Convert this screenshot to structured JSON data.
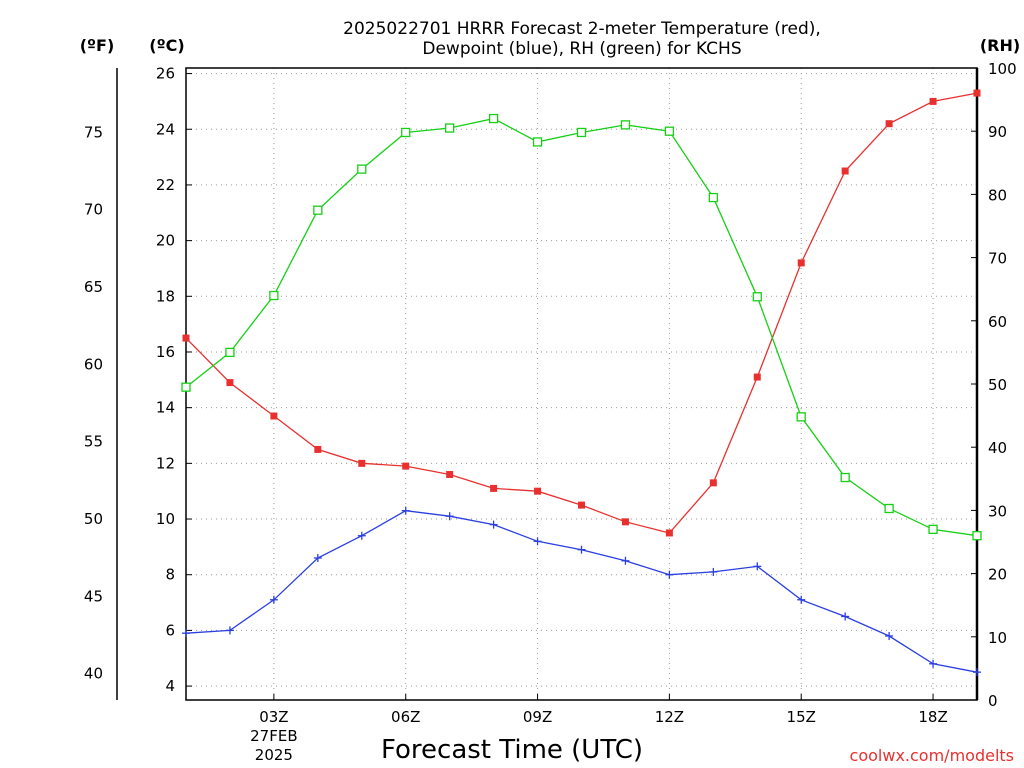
{
  "chart_data": {
    "type": "line",
    "title_line1": "2025022701 HRRR Forecast 2-meter Temperature (red),",
    "title_line2": "Dewpoint (blue), RH (green) for KCHS",
    "xlabel": "Forecast Time (UTC)",
    "credit": "coolwx.com/modelts",
    "unit_f": "(ºF)",
    "unit_c": "(ºC)",
    "unit_rh": "(RH)",
    "x_hours": [
      1,
      2,
      3,
      4,
      5,
      6,
      7,
      8,
      9,
      10,
      11,
      12,
      13,
      14,
      15,
      16,
      17,
      18,
      19
    ],
    "x_range": [
      1,
      19
    ],
    "x_ticks": [
      {
        "hour": 3,
        "label": "03Z",
        "sub1": "27FEB",
        "sub2": "2025"
      },
      {
        "hour": 6,
        "label": "06Z"
      },
      {
        "hour": 9,
        "label": "09Z"
      },
      {
        "hour": 12,
        "label": "12Z"
      },
      {
        "hour": 15,
        "label": "15Z"
      },
      {
        "hour": 18,
        "label": "18Z"
      }
    ],
    "y_celsius": {
      "range": [
        3.5,
        26.2
      ],
      "ticks": [
        4,
        6,
        8,
        10,
        12,
        14,
        16,
        18,
        20,
        22,
        24,
        26
      ]
    },
    "y_fahrenheit": {
      "ticks": [
        40,
        45,
        50,
        55,
        60,
        65,
        70,
        75
      ]
    },
    "y_rh": {
      "range": [
        0,
        100
      ],
      "ticks": [
        0,
        10,
        20,
        30,
        40,
        50,
        60,
        70,
        80,
        90,
        100
      ]
    },
    "series": [
      {
        "name": "Temperature",
        "color": "#e8312f",
        "axis": "celsius",
        "marker": "filled-square",
        "values": [
          16.5,
          14.9,
          13.7,
          12.5,
          12.0,
          11.9,
          11.6,
          11.1,
          11.0,
          10.5,
          9.9,
          9.5,
          11.3,
          15.1,
          19.2,
          22.5,
          24.2,
          25.0,
          25.3
        ]
      },
      {
        "name": "Dewpoint",
        "color": "#2a3fe0",
        "axis": "celsius",
        "marker": "plus",
        "values": [
          5.9,
          6.0,
          7.1,
          8.6,
          9.4,
          10.3,
          10.1,
          9.8,
          9.2,
          8.9,
          8.5,
          8.0,
          8.1,
          8.3,
          7.1,
          6.5,
          5.8,
          4.8,
          4.5
        ]
      },
      {
        "name": "RH",
        "color": "#16d016",
        "axis": "rh",
        "marker": "open-square",
        "values": [
          49.5,
          55.0,
          64.0,
          77.5,
          84.0,
          89.8,
          90.5,
          92.0,
          88.3,
          89.8,
          91.0,
          90.0,
          79.5,
          63.8,
          44.8,
          35.2,
          30.3,
          27.0,
          26.0
        ]
      }
    ]
  }
}
